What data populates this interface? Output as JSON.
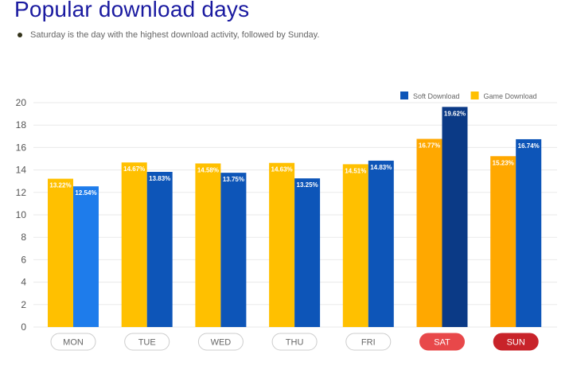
{
  "header": {
    "title": "Popular download days",
    "subtitle": "Saturday is the day with the highest download activity, followed by Sunday."
  },
  "colors": {
    "game": "#FFC000",
    "game_highlight": "#FFA800",
    "soft": "#0D55B8",
    "soft_mon": "#1E7CEB",
    "soft_highlight": "#0B3A86",
    "grid": "#EAEAEA",
    "pill_border": "#CCCCCC",
    "pill_text": "#666666",
    "pill_sat": "#E8484A",
    "pill_sun": "#C8232A"
  },
  "chart_data": {
    "type": "bar",
    "categories": [
      "MON",
      "TUE",
      "WED",
      "THU",
      "FRI",
      "SAT",
      "SUN"
    ],
    "highlighted_categories": [
      "SAT",
      "SUN"
    ],
    "series": [
      {
        "name": "Game Download",
        "values": [
          13.22,
          14.67,
          14.58,
          14.63,
          14.51,
          16.77,
          15.23
        ],
        "labels": [
          "13.22%",
          "14.67%",
          "14.58%",
          "14.63%",
          "14.51%",
          "16.77%",
          "15.23%"
        ]
      },
      {
        "name": "Soft Download",
        "values": [
          12.54,
          13.83,
          13.75,
          13.25,
          14.83,
          19.62,
          16.74
        ],
        "labels": [
          "12.54%",
          "13.83%",
          "13.75%",
          "13.25%",
          "14.83%",
          "19.62%",
          "16.74%"
        ]
      }
    ],
    "legend_order": [
      "Soft Download",
      "Game Download"
    ],
    "legend_position": "top-right",
    "ylim": [
      0,
      20
    ],
    "yticks": [
      0,
      2,
      4,
      6,
      8,
      10,
      12,
      14,
      16,
      18,
      20
    ],
    "grid": true
  }
}
